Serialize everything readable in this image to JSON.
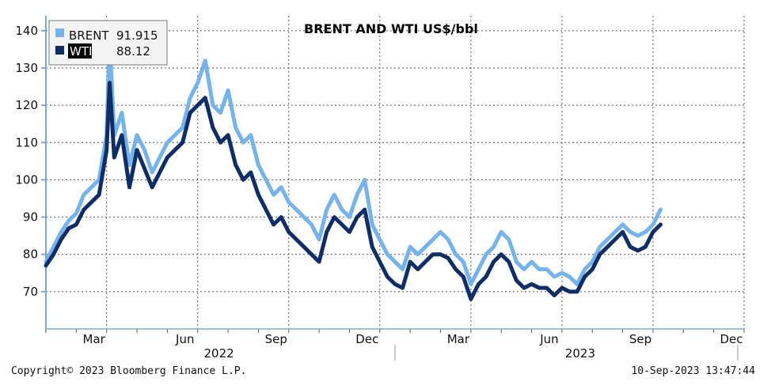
{
  "colors": {
    "brent": "#74b3ec",
    "wti": "#0f2d66",
    "grid": "#555555",
    "axis": "#7aa9d8"
  },
  "footer": {
    "copyright": "Copyright© 2023 Bloomberg Finance L.P.",
    "timestamp": "10-Sep-2023 13:47:44"
  },
  "legend": {
    "brent_label": "BRENT",
    "brent_value": "91.915",
    "wti_label": "WTI",
    "wti_value": "88.12"
  },
  "chart_data": {
    "type": "line",
    "title": "BRENT AND WTI US$/bbl",
    "x_unit": "months since Jan 2022",
    "xlim": [
      0,
      23
    ],
    "ylim": [
      60,
      144
    ],
    "yticks": [
      70,
      80,
      90,
      100,
      110,
      120,
      130,
      140
    ],
    "month_ticks": [
      {
        "label": "Mar",
        "x": 2
      },
      {
        "label": "Jun",
        "x": 5
      },
      {
        "label": "Sep",
        "x": 8
      },
      {
        "label": "Dec",
        "x": 11
      },
      {
        "label": "Mar",
        "x": 14
      },
      {
        "label": "Jun",
        "x": 17
      },
      {
        "label": "Sep",
        "x": 20
      },
      {
        "label": "Dec",
        "x": 23
      }
    ],
    "year_labels": [
      {
        "label": "2022",
        "x": 5.7
      },
      {
        "label": "2023",
        "x": 17.6
      }
    ],
    "year_separator_x": 11.5,
    "grid": true,
    "legend_position": "top-left",
    "series": [
      {
        "name": "BRENT",
        "x": [
          0,
          0.25,
          0.5,
          0.75,
          1.0,
          1.25,
          1.5,
          1.75,
          2.0,
          2.1,
          2.25,
          2.5,
          2.75,
          3.0,
          3.25,
          3.5,
          3.75,
          4.0,
          4.25,
          4.5,
          4.75,
          5.0,
          5.25,
          5.5,
          5.75,
          6.0,
          6.25,
          6.5,
          6.75,
          7.0,
          7.25,
          7.5,
          7.75,
          8.0,
          8.25,
          8.5,
          8.75,
          9.0,
          9.25,
          9.5,
          9.75,
          10.0,
          10.25,
          10.5,
          10.75,
          11.0,
          11.25,
          11.5,
          11.75,
          12.0,
          12.25,
          12.5,
          12.75,
          13.0,
          13.25,
          13.5,
          13.75,
          14.0,
          14.25,
          14.5,
          14.75,
          15.0,
          15.25,
          15.5,
          15.75,
          16.0,
          16.25,
          16.5,
          16.75,
          17.0,
          17.25,
          17.5,
          17.75,
          18.0,
          18.25,
          18.5,
          18.75,
          19.0,
          19.25,
          19.5,
          19.75,
          20.0,
          20.25
        ],
        "values": [
          78,
          82,
          86,
          89,
          91,
          96,
          98,
          100,
          112,
          138,
          112,
          118,
          104,
          112,
          108,
          102,
          106,
          110,
          112,
          114,
          122,
          126,
          132,
          120,
          118,
          124,
          114,
          110,
          112,
          104,
          100,
          96,
          98,
          94,
          92,
          90,
          88,
          84,
          92,
          96,
          92,
          90,
          96,
          100,
          88,
          84,
          80,
          78,
          76,
          82,
          80,
          82,
          84,
          86,
          84,
          80,
          78,
          72,
          76,
          80,
          82,
          86,
          84,
          78,
          76,
          78,
          76,
          76,
          74,
          75,
          74,
          72,
          76,
          78,
          82,
          84,
          86,
          88,
          86,
          85,
          86,
          88,
          92
        ]
      },
      {
        "name": "WTI",
        "x": [
          0,
          0.25,
          0.5,
          0.75,
          1.0,
          1.25,
          1.5,
          1.75,
          2.0,
          2.1,
          2.25,
          2.5,
          2.75,
          3.0,
          3.25,
          3.5,
          3.75,
          4.0,
          4.25,
          4.5,
          4.75,
          5.0,
          5.25,
          5.5,
          5.75,
          6.0,
          6.25,
          6.5,
          6.75,
          7.0,
          7.25,
          7.5,
          7.75,
          8.0,
          8.25,
          8.5,
          8.75,
          9.0,
          9.25,
          9.5,
          9.75,
          10.0,
          10.25,
          10.5,
          10.75,
          11.0,
          11.25,
          11.5,
          11.75,
          12.0,
          12.25,
          12.5,
          12.75,
          13.0,
          13.25,
          13.5,
          13.75,
          14.0,
          14.25,
          14.5,
          14.75,
          15.0,
          15.25,
          15.5,
          15.75,
          16.0,
          16.25,
          16.5,
          16.75,
          17.0,
          17.25,
          17.5,
          17.75,
          18.0,
          18.25,
          18.5,
          18.75,
          19.0,
          19.25,
          19.5,
          19.75,
          20.0,
          20.25
        ],
        "values": [
          77,
          80,
          84,
          87,
          88,
          92,
          94,
          96,
          108,
          126,
          106,
          112,
          98,
          108,
          103,
          98,
          102,
          106,
          108,
          110,
          118,
          120,
          122,
          114,
          110,
          112,
          104,
          100,
          102,
          96,
          92,
          88,
          90,
          86,
          84,
          82,
          80,
          78,
          86,
          90,
          88,
          86,
          90,
          92,
          82,
          78,
          74,
          72,
          71,
          78,
          76,
          78,
          80,
          80,
          79,
          76,
          74,
          68,
          72,
          74,
          78,
          80,
          78,
          73,
          71,
          72,
          71,
          71,
          69,
          71,
          70,
          70,
          74,
          76,
          80,
          82,
          84,
          86,
          82,
          81,
          82,
          86,
          88
        ]
      }
    ]
  }
}
